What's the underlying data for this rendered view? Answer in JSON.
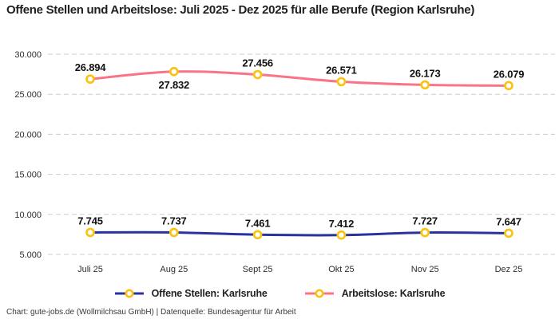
{
  "title": "Offene Stellen und Arbeitslose: Juli 2025 - Dez 2025 für alle Berufe (Region Karlsruhe)",
  "footer": "Chart: gute-jobs.de (Wollmilchsau GmbH) | Datenquelle: Bundesagentur für Arbeit",
  "legend": {
    "items": [
      {
        "label": "Offene Stellen: Karlsruhe",
        "color": "#28339e"
      },
      {
        "label": "Arbeitslose: Karlsruhe",
        "color": "#f97487"
      }
    ]
  },
  "chart_data": {
    "type": "line",
    "title": "Offene Stellen und Arbeitslose: Juli 2025 - Dez 2025 für alle Berufe (Region Karlsruhe)",
    "categories": [
      "Juli 25",
      "Aug 25",
      "Sept 25",
      "Okt 25",
      "Nov 25",
      "Dez 25"
    ],
    "series": [
      {
        "name": "Offene Stellen: Karlsruhe",
        "color": "#28339e",
        "values": [
          7745,
          7737,
          7461,
          7412,
          7727,
          7647
        ],
        "labels": [
          "7.745",
          "7.737",
          "7.461",
          "7.412",
          "7.727",
          "7.647"
        ],
        "label_placement": [
          "above",
          "above",
          "above",
          "above",
          "above",
          "above"
        ]
      },
      {
        "name": "Arbeitslose: Karlsruhe",
        "color": "#f97487",
        "values": [
          26894,
          27832,
          27456,
          26571,
          26173,
          26079
        ],
        "labels": [
          "26.894",
          "27.832",
          "27.456",
          "26.571",
          "26.173",
          "26.079"
        ],
        "label_placement": [
          "above",
          "below",
          "above",
          "above",
          "above",
          "above"
        ]
      }
    ],
    "y_ticks": [
      {
        "value": 30000,
        "label": "30.000"
      },
      {
        "value": 25000,
        "label": "25.000"
      },
      {
        "value": 20000,
        "label": "20.000"
      },
      {
        "value": 15000,
        "label": "15.000"
      },
      {
        "value": 10000,
        "label": "10.000"
      },
      {
        "value": 5000,
        "label": "5.000"
      }
    ],
    "ylim": [
      5000,
      30000
    ],
    "xlabel": "",
    "ylabel": "",
    "grid": "horizontal-dashed",
    "grid_color": "#cccccc",
    "marker_color": "#f9c313",
    "marker_fill": "#ffffff",
    "tick_color": "#2d2d2d",
    "data_label_color": "#111111",
    "legend_position": "bottom"
  }
}
